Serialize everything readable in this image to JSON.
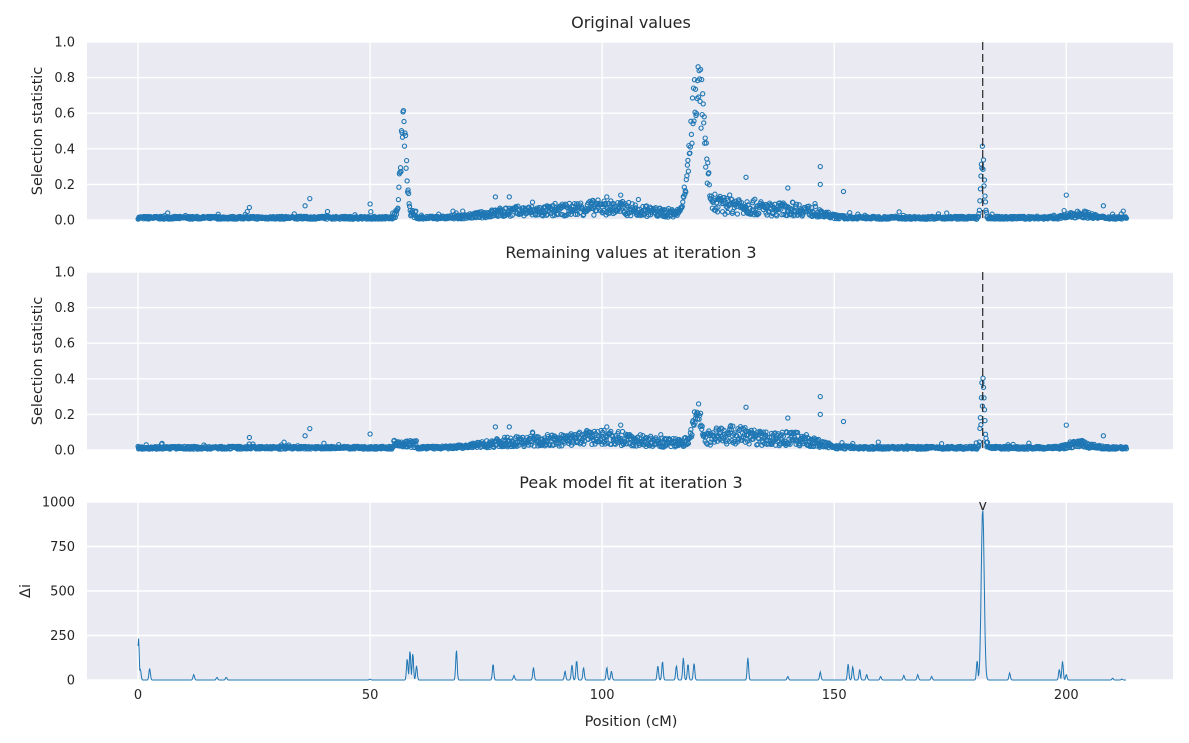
{
  "chart_data": {
    "type": "scatter",
    "shared_x": {
      "label": "Position (cM)",
      "ticks": [
        0,
        50,
        100,
        150,
        200
      ],
      "range": [
        -11,
        223
      ]
    },
    "series_color": "#1f77b4",
    "peak_position": 182.0,
    "panels": [
      {
        "title": "Original values",
        "type": "scatter",
        "ylabel": "Selection statistic",
        "ylim": [
          0,
          1.0
        ],
        "yticks": [
          0.0,
          0.2,
          0.4,
          0.6,
          0.8,
          1.0
        ],
        "ytick_labels": [
          "0.0",
          "0.2",
          "0.4",
          "0.6",
          "0.8",
          "1.0"
        ],
        "show_peak_line": true,
        "peaks": [
          {
            "center": 57.2,
            "height": 0.71,
            "width": 0.9
          },
          {
            "center": 120.5,
            "height": 0.95,
            "width": 2.2
          },
          {
            "center": 182.0,
            "height": 0.42,
            "width": 0.55
          }
        ],
        "outliers": [
          [
            24,
            0.07
          ],
          [
            36,
            0.08
          ],
          [
            37,
            0.12
          ],
          [
            50,
            0.09
          ],
          [
            77,
            0.13
          ],
          [
            80,
            0.13
          ],
          [
            85,
            0.1
          ],
          [
            101,
            0.13
          ],
          [
            104,
            0.14
          ],
          [
            131,
            0.24
          ],
          [
            140,
            0.18
          ],
          [
            147,
            0.3
          ],
          [
            147,
            0.2
          ],
          [
            152,
            0.16
          ],
          [
            200,
            0.14
          ],
          [
            208,
            0.08
          ]
        ]
      },
      {
        "title": "Remaining values at iteration 3",
        "type": "scatter",
        "ylabel": "Selection statistic",
        "ylim": [
          0,
          1.0
        ],
        "yticks": [
          0.0,
          0.2,
          0.4,
          0.6,
          0.8,
          1.0
        ],
        "ytick_labels": [
          "0.0",
          "0.2",
          "0.4",
          "0.6",
          "0.8",
          "1.0"
        ],
        "show_peak_line": true,
        "peaks": [
          {
            "center": 120.5,
            "height": 0.27,
            "width": 1.5
          },
          {
            "center": 182.0,
            "height": 0.42,
            "width": 0.55
          }
        ],
        "outliers": [
          [
            24,
            0.07
          ],
          [
            36,
            0.08
          ],
          [
            37,
            0.12
          ],
          [
            50,
            0.09
          ],
          [
            77,
            0.13
          ],
          [
            80,
            0.13
          ],
          [
            85,
            0.1
          ],
          [
            101,
            0.13
          ],
          [
            104,
            0.14
          ],
          [
            131,
            0.24
          ],
          [
            140,
            0.18
          ],
          [
            147,
            0.3
          ],
          [
            147,
            0.2
          ],
          [
            152,
            0.16
          ],
          [
            200,
            0.14
          ],
          [
            208,
            0.08
          ]
        ]
      },
      {
        "title": "Peak model fit at iteration 3",
        "type": "line",
        "ylabel": "Δi",
        "ylim": [
          0,
          1000
        ],
        "yticks": [
          0,
          250,
          500,
          750,
          1000
        ],
        "ytick_labels": [
          "0",
          "250",
          "500",
          "750",
          "1000"
        ],
        "show_peak_line": false,
        "marker_label": "v",
        "marker_x": 182.0,
        "spikes": [
          [
            0.1,
            235
          ],
          [
            0.5,
            60
          ],
          [
            2.5,
            65
          ],
          [
            12,
            30
          ],
          [
            17,
            15
          ],
          [
            19,
            15
          ],
          [
            50,
            5
          ],
          [
            58,
            120
          ],
          [
            58.6,
            165
          ],
          [
            59.2,
            150
          ],
          [
            60,
            80
          ],
          [
            68.6,
            170
          ],
          [
            76.5,
            90
          ],
          [
            81,
            25
          ],
          [
            85.2,
            70
          ],
          [
            92,
            50
          ],
          [
            93.5,
            85
          ],
          [
            94.5,
            110
          ],
          [
            96,
            70
          ],
          [
            101,
            70
          ],
          [
            102,
            50
          ],
          [
            112,
            80
          ],
          [
            113,
            105
          ],
          [
            116,
            80
          ],
          [
            117.5,
            125
          ],
          [
            118.5,
            90
          ],
          [
            119.8,
            95
          ],
          [
            131.4,
            125
          ],
          [
            140,
            20
          ],
          [
            147,
            45
          ],
          [
            153,
            90
          ],
          [
            154,
            75
          ],
          [
            155.5,
            60
          ],
          [
            157,
            30
          ],
          [
            160,
            20
          ],
          [
            165,
            25
          ],
          [
            168,
            30
          ],
          [
            171,
            20
          ],
          [
            180.8,
            110
          ],
          [
            182,
            960
          ],
          [
            187.8,
            40
          ],
          [
            198.5,
            60
          ],
          [
            199.2,
            105
          ],
          [
            200,
            30
          ],
          [
            210,
            10
          ],
          [
            212,
            5
          ]
        ]
      }
    ]
  }
}
